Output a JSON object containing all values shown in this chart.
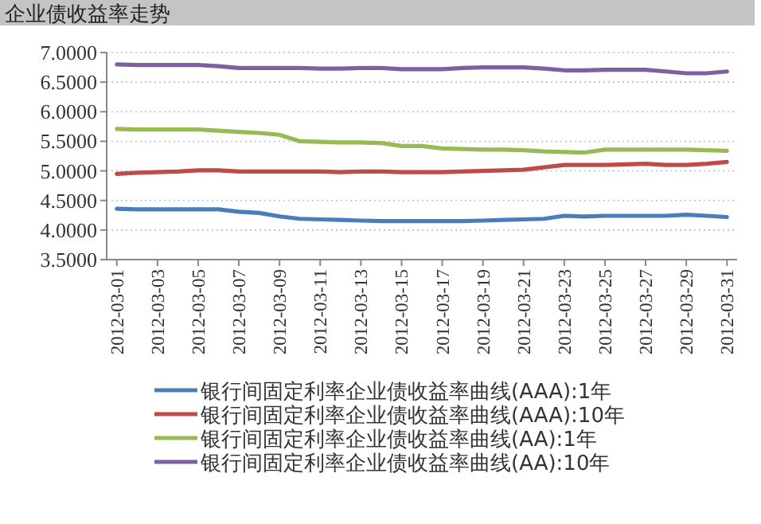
{
  "chart_data": {
    "type": "line",
    "title": "企业债收益率走势",
    "categories": [
      "2012-03-01",
      null,
      "2012-03-03",
      null,
      "2012-03-05",
      null,
      "2012-03-07",
      null,
      "2012-03-09",
      null,
      "2012-03-11",
      null,
      "2012-03-13",
      null,
      "2012-03-15",
      null,
      "2012-03-17",
      null,
      "2012-03-19",
      null,
      "2012-03-21",
      null,
      "2012-03-23",
      null,
      "2012-03-25",
      null,
      "2012-03-27",
      null,
      "2012-03-29",
      null,
      "2012-03-31"
    ],
    "series": [
      {
        "name": "银行间固定利率企业债收益率曲线(AAA):1年",
        "color": "#4a7ebb",
        "values": [
          4.36,
          4.35,
          4.35,
          4.35,
          4.35,
          4.35,
          4.31,
          4.29,
          4.23,
          4.19,
          4.18,
          4.17,
          4.16,
          4.15,
          4.15,
          4.15,
          4.15,
          4.15,
          4.16,
          4.17,
          4.18,
          4.19,
          4.24,
          4.23,
          4.24,
          4.24,
          4.24,
          4.24,
          4.26,
          4.24,
          4.22
        ]
      },
      {
        "name": "银行间固定利率企业债收益率曲线(AAA):10年",
        "color": "#be4b48",
        "values": [
          4.95,
          4.97,
          4.98,
          4.99,
          5.01,
          5.01,
          4.99,
          4.99,
          4.99,
          4.99,
          4.99,
          4.98,
          4.99,
          4.99,
          4.98,
          4.98,
          4.98,
          4.99,
          5.0,
          5.01,
          5.02,
          5.06,
          5.1,
          5.1,
          5.1,
          5.11,
          5.12,
          5.1,
          5.1,
          5.12,
          5.15
        ]
      },
      {
        "name": "银行间固定利率企业债收益率曲线(AA):1年",
        "color": "#98b954",
        "values": [
          5.71,
          5.7,
          5.7,
          5.7,
          5.7,
          5.68,
          5.66,
          5.64,
          5.61,
          5.5,
          5.49,
          5.48,
          5.48,
          5.47,
          5.42,
          5.42,
          5.38,
          5.37,
          5.36,
          5.36,
          5.35,
          5.33,
          5.32,
          5.31,
          5.36,
          5.36,
          5.36,
          5.36,
          5.36,
          5.35,
          5.34
        ]
      },
      {
        "name": "银行间固定利率企业债收益率曲线(AA):10年",
        "color": "#7d60a0",
        "values": [
          6.8,
          6.79,
          6.79,
          6.79,
          6.79,
          6.77,
          6.74,
          6.74,
          6.74,
          6.74,
          6.73,
          6.73,
          6.74,
          6.74,
          6.72,
          6.72,
          6.72,
          6.74,
          6.75,
          6.75,
          6.75,
          6.73,
          6.7,
          6.7,
          6.71,
          6.71,
          6.71,
          6.68,
          6.65,
          6.65,
          6.68
        ]
      }
    ],
    "ylim": [
      3.5,
      7.0
    ],
    "yticks": [
      {
        "value": 3.5,
        "label": "3.5000"
      },
      {
        "value": 4.0,
        "label": "4.0000"
      },
      {
        "value": 4.5,
        "label": "4.5000"
      },
      {
        "value": 5.0,
        "label": "5.0000"
      },
      {
        "value": 5.5,
        "label": "5.5000"
      },
      {
        "value": 6.0,
        "label": "6.0000"
      },
      {
        "value": 6.5,
        "label": "6.5000"
      },
      {
        "value": 7.0,
        "label": "7.0000"
      }
    ],
    "grid": "y",
    "legend": "bottom",
    "marker": "none",
    "line_style": "solid"
  }
}
